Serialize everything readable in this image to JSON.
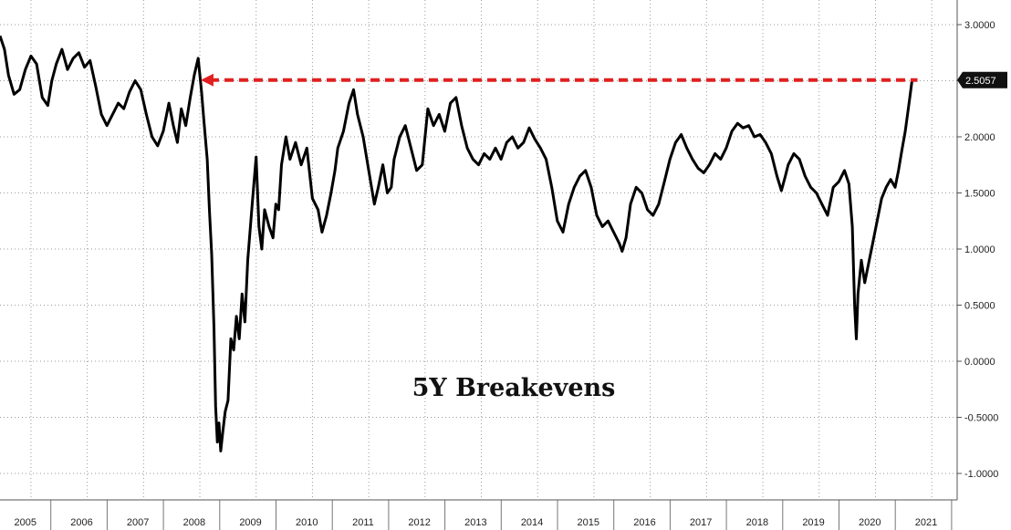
{
  "chart_data": {
    "type": "line",
    "title": "5Y Breakevens",
    "xlabel": "",
    "ylabel": "",
    "ylim": [
      -1.1,
      3.2
    ],
    "xlim": [
      2005.0,
      2021.35
    ],
    "grid": true,
    "y_ticks": [
      "3.0000",
      "2.5000",
      "2.0000",
      "1.5000",
      "1.0000",
      "0.5000",
      "0.0000",
      "-0.5000",
      "-1.0000"
    ],
    "x_ticks": [
      "2005",
      "2006",
      "2007",
      "2008",
      "2009",
      "2010",
      "2011",
      "2012",
      "2013",
      "2014",
      "2015",
      "2016",
      "2017",
      "2018",
      "2019",
      "2020",
      "2021"
    ],
    "last_value_label": "2.5057",
    "reference_line": {
      "value": 2.5057,
      "from": 2008.5,
      "to": 2021.2,
      "style": "dashed",
      "arrow": "left",
      "color": "#e02020"
    },
    "series": [
      {
        "color": "#000000",
        "points": [
          [
            2005.0,
            2.9
          ],
          [
            2005.08,
            2.78
          ],
          [
            2005.15,
            2.55
          ],
          [
            2005.25,
            2.38
          ],
          [
            2005.35,
            2.42
          ],
          [
            2005.45,
            2.6
          ],
          [
            2005.55,
            2.72
          ],
          [
            2005.65,
            2.65
          ],
          [
            2005.75,
            2.35
          ],
          [
            2005.85,
            2.28
          ],
          [
            2005.92,
            2.5
          ],
          [
            2006.0,
            2.65
          ],
          [
            2006.1,
            2.78
          ],
          [
            2006.2,
            2.6
          ],
          [
            2006.3,
            2.7
          ],
          [
            2006.4,
            2.75
          ],
          [
            2006.5,
            2.62
          ],
          [
            2006.6,
            2.68
          ],
          [
            2006.7,
            2.45
          ],
          [
            2006.8,
            2.2
          ],
          [
            2006.9,
            2.1
          ],
          [
            2007.0,
            2.2
          ],
          [
            2007.1,
            2.3
          ],
          [
            2007.2,
            2.25
          ],
          [
            2007.3,
            2.4
          ],
          [
            2007.4,
            2.5
          ],
          [
            2007.5,
            2.42
          ],
          [
            2007.6,
            2.2
          ],
          [
            2007.7,
            2.0
          ],
          [
            2007.8,
            1.92
          ],
          [
            2007.9,
            2.05
          ],
          [
            2008.0,
            2.3
          ],
          [
            2008.08,
            2.1
          ],
          [
            2008.15,
            1.95
          ],
          [
            2008.22,
            2.25
          ],
          [
            2008.3,
            2.1
          ],
          [
            2008.38,
            2.35
          ],
          [
            2008.45,
            2.55
          ],
          [
            2008.52,
            2.7
          ],
          [
            2008.58,
            2.4
          ],
          [
            2008.62,
            2.15
          ],
          [
            2008.68,
            1.8
          ],
          [
            2008.72,
            1.35
          ],
          [
            2008.76,
            0.95
          ],
          [
            2008.8,
            0.3
          ],
          [
            2008.83,
            -0.4
          ],
          [
            2008.86,
            -0.72
          ],
          [
            2008.89,
            -0.55
          ],
          [
            2008.92,
            -0.8
          ],
          [
            2008.96,
            -0.62
          ],
          [
            2009.0,
            -0.45
          ],
          [
            2009.05,
            -0.35
          ],
          [
            2009.1,
            0.2
          ],
          [
            2009.15,
            0.1
          ],
          [
            2009.2,
            0.4
          ],
          [
            2009.25,
            0.2
          ],
          [
            2009.3,
            0.6
          ],
          [
            2009.35,
            0.35
          ],
          [
            2009.4,
            0.9
          ],
          [
            2009.48,
            1.4
          ],
          [
            2009.55,
            1.82
          ],
          [
            2009.6,
            1.2
          ],
          [
            2009.65,
            1.0
          ],
          [
            2009.7,
            1.35
          ],
          [
            2009.78,
            1.2
          ],
          [
            2009.85,
            1.1
          ],
          [
            2009.9,
            1.4
          ],
          [
            2009.95,
            1.35
          ],
          [
            2010.0,
            1.75
          ],
          [
            2010.08,
            2.0
          ],
          [
            2010.15,
            1.8
          ],
          [
            2010.25,
            1.95
          ],
          [
            2010.35,
            1.75
          ],
          [
            2010.45,
            1.9
          ],
          [
            2010.55,
            1.45
          ],
          [
            2010.65,
            1.35
          ],
          [
            2010.72,
            1.15
          ],
          [
            2010.8,
            1.3
          ],
          [
            2010.88,
            1.5
          ],
          [
            2010.95,
            1.7
          ],
          [
            2011.0,
            1.9
          ],
          [
            2011.1,
            2.05
          ],
          [
            2011.2,
            2.3
          ],
          [
            2011.28,
            2.42
          ],
          [
            2011.35,
            2.2
          ],
          [
            2011.45,
            2.0
          ],
          [
            2011.55,
            1.7
          ],
          [
            2011.65,
            1.4
          ],
          [
            2011.72,
            1.55
          ],
          [
            2011.8,
            1.75
          ],
          [
            2011.88,
            1.5
          ],
          [
            2011.95,
            1.55
          ],
          [
            2012.0,
            1.8
          ],
          [
            2012.1,
            2.0
          ],
          [
            2012.2,
            2.1
          ],
          [
            2012.3,
            1.9
          ],
          [
            2012.4,
            1.7
          ],
          [
            2012.5,
            1.75
          ],
          [
            2012.6,
            2.25
          ],
          [
            2012.7,
            2.1
          ],
          [
            2012.8,
            2.2
          ],
          [
            2012.9,
            2.05
          ],
          [
            2013.0,
            2.3
          ],
          [
            2013.1,
            2.35
          ],
          [
            2013.2,
            2.1
          ],
          [
            2013.3,
            1.9
          ],
          [
            2013.4,
            1.8
          ],
          [
            2013.5,
            1.75
          ],
          [
            2013.6,
            1.85
          ],
          [
            2013.7,
            1.8
          ],
          [
            2013.8,
            1.9
          ],
          [
            2013.9,
            1.8
          ],
          [
            2014.0,
            1.95
          ],
          [
            2014.1,
            2.0
          ],
          [
            2014.2,
            1.9
          ],
          [
            2014.3,
            1.95
          ],
          [
            2014.4,
            2.08
          ],
          [
            2014.5,
            1.98
          ],
          [
            2014.6,
            1.9
          ],
          [
            2014.7,
            1.8
          ],
          [
            2014.8,
            1.55
          ],
          [
            2014.9,
            1.25
          ],
          [
            2015.0,
            1.15
          ],
          [
            2015.1,
            1.4
          ],
          [
            2015.2,
            1.55
          ],
          [
            2015.3,
            1.65
          ],
          [
            2015.4,
            1.7
          ],
          [
            2015.5,
            1.55
          ],
          [
            2015.6,
            1.3
          ],
          [
            2015.7,
            1.2
          ],
          [
            2015.8,
            1.25
          ],
          [
            2015.9,
            1.15
          ],
          [
            2016.0,
            1.05
          ],
          [
            2016.05,
            0.98
          ],
          [
            2016.12,
            1.1
          ],
          [
            2016.2,
            1.4
          ],
          [
            2016.3,
            1.55
          ],
          [
            2016.4,
            1.5
          ],
          [
            2016.5,
            1.35
          ],
          [
            2016.6,
            1.3
          ],
          [
            2016.7,
            1.4
          ],
          [
            2016.8,
            1.6
          ],
          [
            2016.9,
            1.8
          ],
          [
            2017.0,
            1.95
          ],
          [
            2017.1,
            2.02
          ],
          [
            2017.2,
            1.9
          ],
          [
            2017.3,
            1.8
          ],
          [
            2017.4,
            1.72
          ],
          [
            2017.5,
            1.68
          ],
          [
            2017.6,
            1.75
          ],
          [
            2017.7,
            1.85
          ],
          [
            2017.8,
            1.8
          ],
          [
            2017.9,
            1.9
          ],
          [
            2018.0,
            2.05
          ],
          [
            2018.1,
            2.12
          ],
          [
            2018.2,
            2.08
          ],
          [
            2018.3,
            2.1
          ],
          [
            2018.4,
            2.0
          ],
          [
            2018.5,
            2.02
          ],
          [
            2018.6,
            1.95
          ],
          [
            2018.7,
            1.85
          ],
          [
            2018.8,
            1.65
          ],
          [
            2018.88,
            1.52
          ],
          [
            2018.95,
            1.65
          ],
          [
            2019.0,
            1.75
          ],
          [
            2019.1,
            1.85
          ],
          [
            2019.2,
            1.8
          ],
          [
            2019.3,
            1.65
          ],
          [
            2019.4,
            1.55
          ],
          [
            2019.5,
            1.5
          ],
          [
            2019.6,
            1.4
          ],
          [
            2019.7,
            1.3
          ],
          [
            2019.8,
            1.55
          ],
          [
            2019.9,
            1.6
          ],
          [
            2020.0,
            1.7
          ],
          [
            2020.08,
            1.58
          ],
          [
            2020.14,
            1.2
          ],
          [
            2020.18,
            0.5
          ],
          [
            2020.21,
            0.2
          ],
          [
            2020.24,
            0.6
          ],
          [
            2020.3,
            0.9
          ],
          [
            2020.36,
            0.7
          ],
          [
            2020.42,
            0.85
          ],
          [
            2020.5,
            1.05
          ],
          [
            2020.58,
            1.25
          ],
          [
            2020.66,
            1.45
          ],
          [
            2020.74,
            1.55
          ],
          [
            2020.82,
            1.62
          ],
          [
            2020.9,
            1.55
          ],
          [
            2020.96,
            1.7
          ],
          [
            2021.02,
            1.88
          ],
          [
            2021.08,
            2.05
          ],
          [
            2021.12,
            2.2
          ],
          [
            2021.16,
            2.35
          ],
          [
            2021.2,
            2.5
          ]
        ]
      }
    ]
  }
}
